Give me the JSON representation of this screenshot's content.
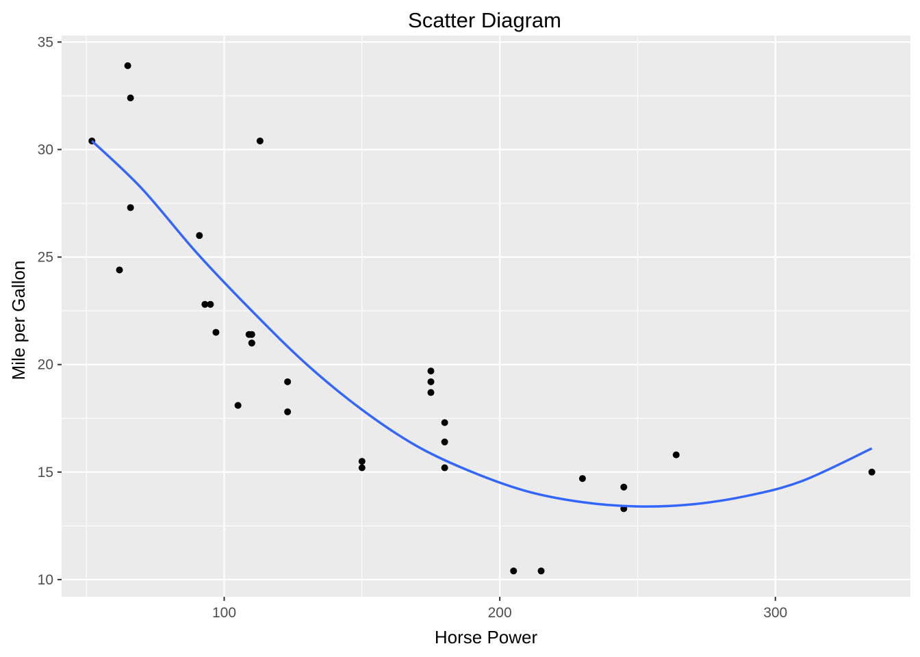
{
  "chart_data": {
    "type": "scatter",
    "title": "Scatter Diagram",
    "xlabel": "Horse Power",
    "ylabel": "Mile per Gallon",
    "xlim": [
      41,
      349
    ],
    "ylim": [
      9.2,
      35.3
    ],
    "x_ticks": [
      100,
      200,
      300
    ],
    "y_ticks": [
      10,
      15,
      20,
      25,
      30,
      35
    ],
    "grid": true,
    "panel_background": "#ebebeb",
    "grid_color": "#ffffff",
    "point_color": "#000000",
    "trend_color": "#3366ff",
    "points": [
      {
        "x": 110,
        "y": 21.0
      },
      {
        "x": 110,
        "y": 21.0
      },
      {
        "x": 93,
        "y": 22.8
      },
      {
        "x": 110,
        "y": 21.4
      },
      {
        "x": 175,
        "y": 18.7
      },
      {
        "x": 105,
        "y": 18.1
      },
      {
        "x": 245,
        "y": 14.3
      },
      {
        "x": 62,
        "y": 24.4
      },
      {
        "x": 95,
        "y": 22.8
      },
      {
        "x": 123,
        "y": 19.2
      },
      {
        "x": 123,
        "y": 17.8
      },
      {
        "x": 180,
        "y": 16.4
      },
      {
        "x": 180,
        "y": 17.3
      },
      {
        "x": 180,
        "y": 15.2
      },
      {
        "x": 205,
        "y": 10.4
      },
      {
        "x": 215,
        "y": 10.4
      },
      {
        "x": 230,
        "y": 14.7
      },
      {
        "x": 66,
        "y": 32.4
      },
      {
        "x": 52,
        "y": 30.4
      },
      {
        "x": 65,
        "y": 33.9
      },
      {
        "x": 97,
        "y": 21.5
      },
      {
        "x": 150,
        "y": 15.5
      },
      {
        "x": 150,
        "y": 15.2
      },
      {
        "x": 245,
        "y": 13.3
      },
      {
        "x": 175,
        "y": 19.2
      },
      {
        "x": 66,
        "y": 27.3
      },
      {
        "x": 91,
        "y": 26.0
      },
      {
        "x": 113,
        "y": 30.4
      },
      {
        "x": 264,
        "y": 15.8
      },
      {
        "x": 175,
        "y": 19.7
      },
      {
        "x": 335,
        "y": 15.0
      },
      {
        "x": 109,
        "y": 21.4
      }
    ],
    "trend": {
      "x": [
        52,
        70,
        90,
        110,
        130,
        150,
        170,
        190,
        210,
        230,
        250,
        270,
        290,
        310,
        335
      ],
      "y": [
        30.4,
        28.2,
        25.2,
        22.5,
        20.0,
        17.9,
        16.2,
        15.0,
        14.1,
        13.6,
        13.4,
        13.5,
        13.9,
        14.6,
        16.1
      ]
    }
  }
}
